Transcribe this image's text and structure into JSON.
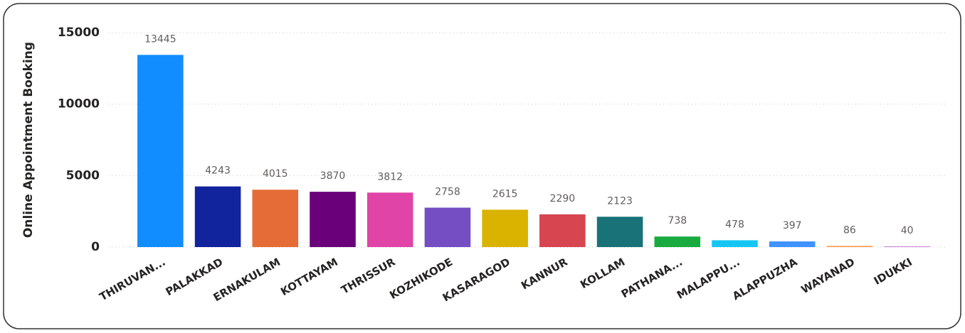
{
  "chart_data": {
    "type": "bar",
    "y_label": "Online Appointment Booking",
    "categories": [
      "THIRUVAN...",
      "PALAKKAD",
      "ERNAKULAM",
      "KOTTAYAM",
      "THRISSUR",
      "KOZHIKODE",
      "KASARAGOD",
      "KANNUR",
      "KOLLAM",
      "PATHANA...",
      "MALAPPU...",
      "ALAPPUZHA",
      "WAYANAD",
      "IDUKKI"
    ],
    "values": [
      13445,
      4243,
      4015,
      3870,
      3812,
      2758,
      2615,
      2290,
      2123,
      738,
      478,
      397,
      86,
      40
    ],
    "colors": [
      "#118DFF",
      "#12239E",
      "#E66C37",
      "#6B007B",
      "#E044A7",
      "#744EC2",
      "#D9B300",
      "#D64550",
      "#197278",
      "#1AAB40",
      "#15C6F4",
      "#4092FF",
      "#FFA058",
      "#BE5DC9"
    ],
    "ylim": [
      0,
      15000
    ],
    "yticks": [
      0,
      5000,
      10000,
      15000
    ],
    "grid": true
  }
}
